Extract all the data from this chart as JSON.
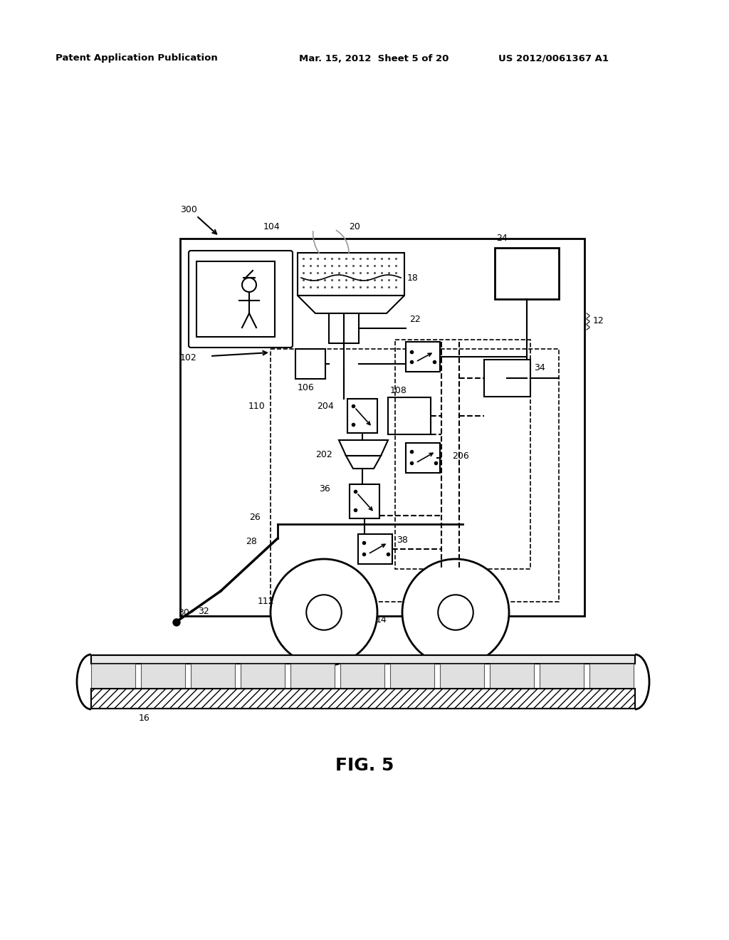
{
  "header_left": "Patent Application Publication",
  "header_center": "Mar. 15, 2012  Sheet 5 of 20",
  "header_right": "US 2012/0061367 A1",
  "figure_label": "FIG. 5",
  "bg_color": "#ffffff",
  "line_color": "#000000"
}
